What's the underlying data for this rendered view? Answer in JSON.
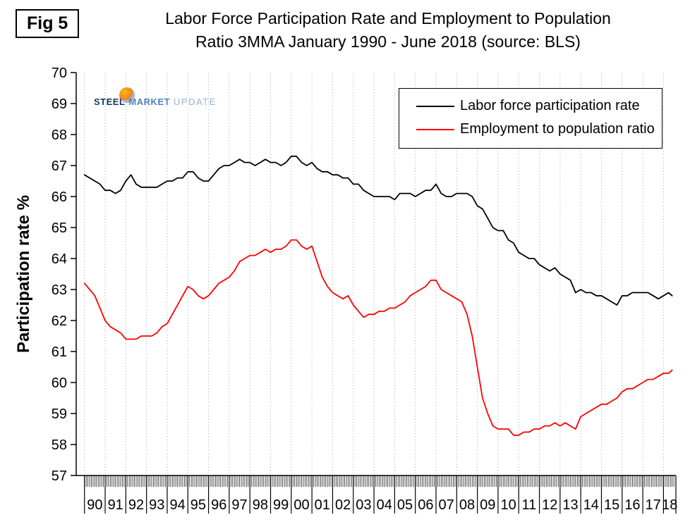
{
  "header": {
    "fig_label": "Fig 5",
    "title_line1": "Labor Force Participation Rate and Employment to Population",
    "title_line2": "Ratio 3MMA January 1990 - June 2018 (source: BLS)"
  },
  "logo": {
    "word1": "STEEL",
    "word2": "MARKET",
    "word3": "UPDATE"
  },
  "colors": {
    "series1": "#000000",
    "series2": "#ff0000",
    "grid": "#aaaaaa",
    "axis": "#000000"
  },
  "chart_data": {
    "type": "line",
    "title": "Labor Force Participation Rate and Employment to Population Ratio 3MMA January 1990 - June 2018 (source: BLS)",
    "xlabel": "",
    "ylabel": "Participation rate %",
    "xlim": [
      1989.6,
      2018.6
    ],
    "ylim": [
      57,
      70
    ],
    "yticks": [
      57,
      58,
      59,
      60,
      61,
      62,
      63,
      64,
      65,
      66,
      67,
      68,
      69,
      70
    ],
    "xtick_labels": [
      "90",
      "91",
      "92",
      "93",
      "94",
      "95",
      "96",
      "97",
      "98",
      "99",
      "00",
      "01",
      "02",
      "03",
      "04",
      "05",
      "06",
      "07",
      "08",
      "09",
      "10",
      "11",
      "12",
      "13",
      "14",
      "15",
      "16",
      "17",
      "18"
    ],
    "grid": "vertical-dotted",
    "legend_position": "top-right",
    "x": [
      1990,
      1990.25,
      1990.5,
      1990.75,
      1991,
      1991.25,
      1991.5,
      1991.75,
      1992,
      1992.25,
      1992.5,
      1992.75,
      1993,
      1993.25,
      1993.5,
      1993.75,
      1994,
      1994.25,
      1994.5,
      1994.75,
      1995,
      1995.25,
      1995.5,
      1995.75,
      1996,
      1996.25,
      1996.5,
      1996.75,
      1997,
      1997.25,
      1997.5,
      1997.75,
      1998,
      1998.25,
      1998.5,
      1998.75,
      1999,
      1999.25,
      1999.5,
      1999.75,
      2000,
      2000.25,
      2000.5,
      2000.75,
      2001,
      2001.25,
      2001.5,
      2001.75,
      2002,
      2002.25,
      2002.5,
      2002.75,
      2003,
      2003.25,
      2003.5,
      2003.75,
      2004,
      2004.25,
      2004.5,
      2004.75,
      2005,
      2005.25,
      2005.5,
      2005.75,
      2006,
      2006.25,
      2006.5,
      2006.75,
      2007,
      2007.25,
      2007.5,
      2007.75,
      2008,
      2008.25,
      2008.5,
      2008.75,
      2009,
      2009.25,
      2009.5,
      2009.75,
      2010,
      2010.25,
      2010.5,
      2010.75,
      2011,
      2011.25,
      2011.5,
      2011.75,
      2012,
      2012.25,
      2012.5,
      2012.75,
      2013,
      2013.25,
      2013.5,
      2013.75,
      2014,
      2014.25,
      2014.5,
      2014.75,
      2015,
      2015.25,
      2015.5,
      2015.75,
      2016,
      2016.25,
      2016.5,
      2016.75,
      2017,
      2017.25,
      2017.5,
      2017.75,
      2018,
      2018.25,
      2018.42
    ],
    "series": [
      {
        "name": "Labor force participation rate",
        "color": "#000000",
        "values": [
          66.7,
          66.6,
          66.5,
          66.4,
          66.2,
          66.2,
          66.1,
          66.2,
          66.5,
          66.7,
          66.4,
          66.3,
          66.3,
          66.3,
          66.3,
          66.4,
          66.5,
          66.5,
          66.6,
          66.6,
          66.8,
          66.8,
          66.6,
          66.5,
          66.5,
          66.7,
          66.9,
          67.0,
          67.0,
          67.1,
          67.2,
          67.1,
          67.1,
          67.0,
          67.1,
          67.2,
          67.1,
          67.1,
          67.0,
          67.1,
          67.3,
          67.3,
          67.1,
          67.0,
          67.1,
          66.9,
          66.8,
          66.8,
          66.7,
          66.7,
          66.6,
          66.6,
          66.4,
          66.4,
          66.2,
          66.1,
          66.0,
          66.0,
          66.0,
          66.0,
          65.9,
          66.1,
          66.1,
          66.1,
          66.0,
          66.1,
          66.2,
          66.2,
          66.4,
          66.1,
          66.0,
          66.0,
          66.1,
          66.1,
          66.1,
          66.0,
          65.7,
          65.6,
          65.3,
          65.0,
          64.9,
          64.9,
          64.6,
          64.5,
          64.2,
          64.1,
          64.0,
          64.0,
          63.8,
          63.7,
          63.6,
          63.7,
          63.5,
          63.4,
          63.3,
          62.9,
          63.0,
          62.9,
          62.9,
          62.8,
          62.8,
          62.7,
          62.6,
          62.5,
          62.8,
          62.8,
          62.9,
          62.9,
          62.9,
          62.9,
          62.8,
          62.7,
          62.8,
          62.9,
          62.8
        ]
      },
      {
        "name": "Employment to population ratio",
        "color": "#ff0000",
        "values": [
          63.2,
          63.0,
          62.8,
          62.4,
          62.0,
          61.8,
          61.7,
          61.6,
          61.4,
          61.4,
          61.4,
          61.5,
          61.5,
          61.5,
          61.6,
          61.8,
          61.9,
          62.2,
          62.5,
          62.8,
          63.1,
          63.0,
          62.8,
          62.7,
          62.8,
          63.0,
          63.2,
          63.3,
          63.4,
          63.6,
          63.9,
          64.0,
          64.1,
          64.1,
          64.2,
          64.3,
          64.2,
          64.3,
          64.3,
          64.4,
          64.6,
          64.6,
          64.4,
          64.3,
          64.4,
          63.9,
          63.4,
          63.1,
          62.9,
          62.8,
          62.7,
          62.8,
          62.5,
          62.3,
          62.1,
          62.2,
          62.2,
          62.3,
          62.3,
          62.4,
          62.4,
          62.5,
          62.6,
          62.8,
          62.9,
          63.0,
          63.1,
          63.3,
          63.3,
          63.0,
          62.9,
          62.8,
          62.7,
          62.6,
          62.2,
          61.5,
          60.5,
          59.5,
          59.0,
          58.6,
          58.5,
          58.5,
          58.5,
          58.3,
          58.3,
          58.4,
          58.4,
          58.5,
          58.5,
          58.6,
          58.6,
          58.7,
          58.6,
          58.7,
          58.6,
          58.5,
          58.9,
          59.0,
          59.1,
          59.2,
          59.3,
          59.3,
          59.4,
          59.5,
          59.7,
          59.8,
          59.8,
          59.9,
          60.0,
          60.1,
          60.1,
          60.2,
          60.3,
          60.3,
          60.4
        ]
      }
    ]
  }
}
